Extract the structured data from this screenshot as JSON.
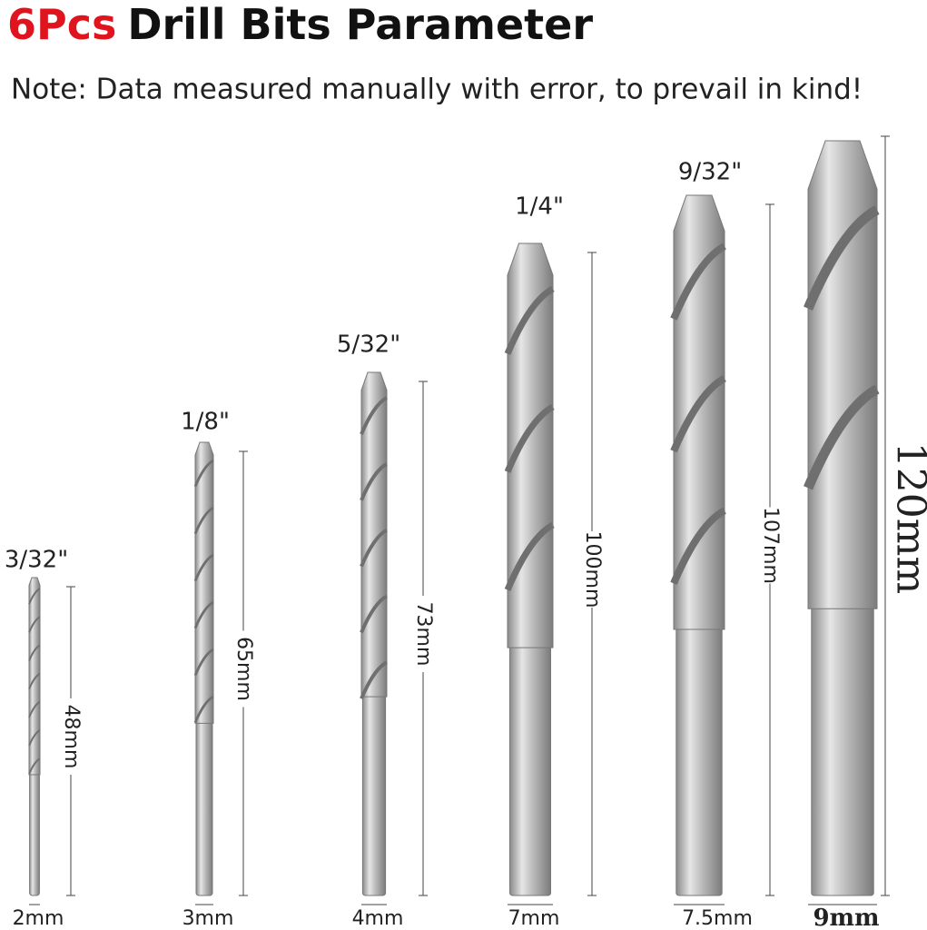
{
  "header": {
    "title_highlight": "6Pcs",
    "title": "Drill Bits Parameter",
    "note": "Note: Data measured manually with error, to prevail in kind!"
  },
  "bits": [
    {
      "size": "3/32\"",
      "length": "48mm",
      "diameter": "2mm"
    },
    {
      "size": "1/8\"",
      "length": "65mm",
      "diameter": "3mm"
    },
    {
      "size": "5/32\"",
      "length": "73mm",
      "diameter": "4mm"
    },
    {
      "size": "1/4\"",
      "length": "100mm",
      "diameter": "7mm"
    },
    {
      "size": "9/32\"",
      "length": "107mm",
      "diameter": "7.5mm"
    },
    {
      "size": null,
      "length": "120mm",
      "diameter": "9mm"
    }
  ]
}
